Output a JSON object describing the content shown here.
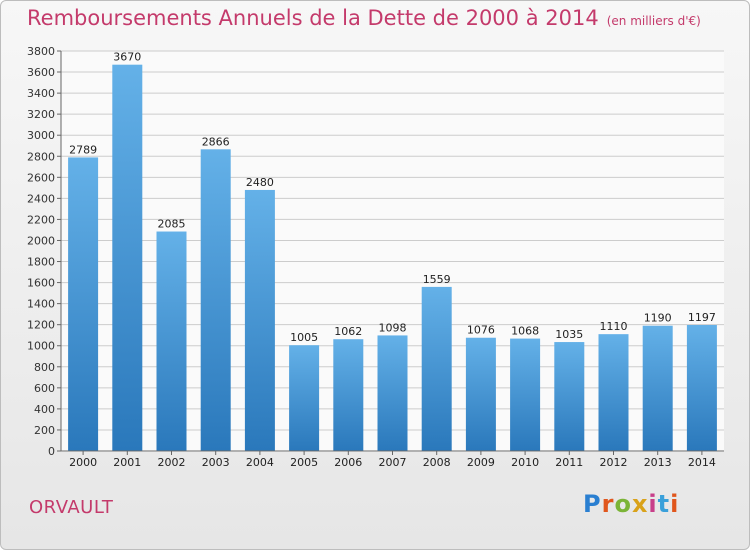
{
  "title": "Remboursements Annuels de la Dette de 2000 à 2014",
  "subtitle": "(en milliers d'€)",
  "commune": "ORVAULT",
  "logo": {
    "text": "Proxiti",
    "letter_colors": [
      "#2a7fd1",
      "#e0561c",
      "#7bb437",
      "#d9a21a",
      "#c83f8a",
      "#3aa0da",
      "#e0561c"
    ]
  },
  "colors": {
    "title": "#c43a6b",
    "bar_top": "#64b1e8",
    "bar_bottom": "#2a78bb",
    "grid": "#cccccc",
    "axis": "#666666"
  },
  "chart_data": {
    "type": "bar",
    "title": "Remboursements Annuels de la Dette de 2000 à 2014",
    "subtitle": "(en milliers d'€)",
    "categories": [
      "2000",
      "2001",
      "2002",
      "2003",
      "2004",
      "2005",
      "2006",
      "2007",
      "2008",
      "2009",
      "2010",
      "2011",
      "2012",
      "2013",
      "2014"
    ],
    "values": [
      2789,
      3670,
      2085,
      2866,
      2480,
      1005,
      1062,
      1098,
      1559,
      1076,
      1068,
      1035,
      1110,
      1190,
      1197
    ],
    "ylim": [
      0,
      3800
    ],
    "ytick_step": 200,
    "grid": true,
    "data_labels": true
  }
}
